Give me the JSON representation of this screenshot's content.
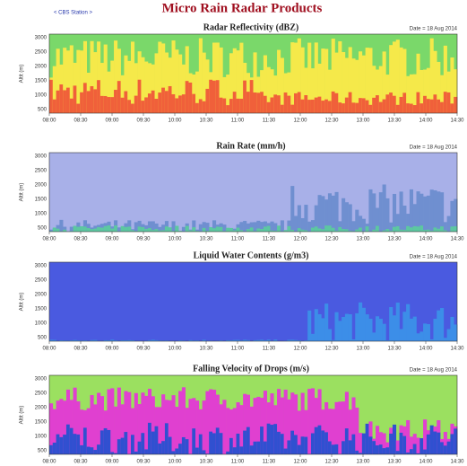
{
  "header": {
    "title": "Micro Rain Radar Products",
    "station": "< CBS Station >"
  },
  "panels": [
    {
      "title": "Radar Reflectivity (dBZ)",
      "date": "Date = 18 Aug 2014",
      "y_label": "Altit (m)"
    },
    {
      "title": "Rain Rate (mm/h)",
      "date": "Date = 18 Aug 2014",
      "y_label": "Altit (m)"
    },
    {
      "title": "Liquid Water Contents (g/m3)",
      "date": "Date = 18 Aug 2014",
      "y_label": "Altit (m)"
    },
    {
      "title": "Falling Velocity of Drops (m/s)",
      "date": "Date = 18 Aug 2014",
      "y_label": "Altit (m)"
    }
  ],
  "y_tick_labels": [
    "3000",
    "2500",
    "2000",
    "1500",
    "1000",
    "500"
  ],
  "x_tick_labels": [
    "08:00",
    "08:30",
    "09:00",
    "09:30",
    "10:00",
    "10:30",
    "11:00",
    "11:30",
    "12:00",
    "12:30",
    "13:00",
    "13:30",
    "14:00",
    "14:30"
  ]
}
